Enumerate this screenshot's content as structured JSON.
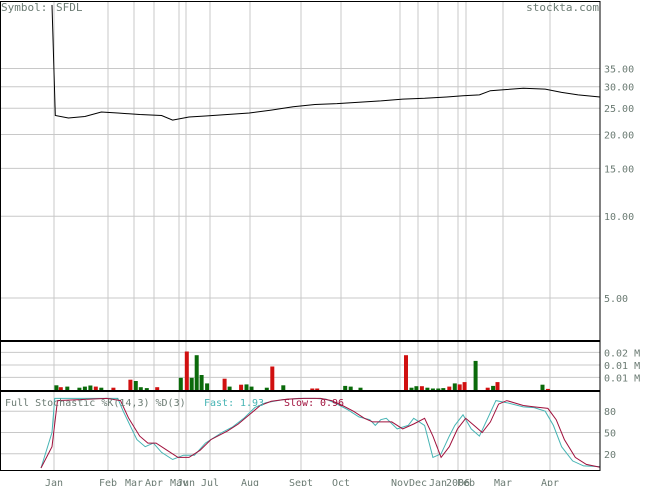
{
  "header": {
    "symbol_label": "Symbol:",
    "symbol": "SFDL",
    "site": "stockta.com"
  },
  "colors": {
    "text": "#6b7b73",
    "grid": "#c8c8c8",
    "up_volume": "#0a6a0a",
    "down_volume": "#d01010",
    "fast_line": "#46b4b4",
    "slow_line": "#a0103c",
    "price_line": "#000000"
  },
  "chart_data": [
    {
      "type": "line",
      "name": "price",
      "y_scale": "log",
      "ylim": [
        3.5,
        60
      ],
      "y_ticks": [
        {
          "label": "35.00",
          "value": 35
        },
        {
          "label": "30.00",
          "value": 30
        },
        {
          "label": "25.00",
          "value": 25
        },
        {
          "label": "20.00",
          "value": 20
        },
        {
          "label": "15.00",
          "value": 15
        },
        {
          "label": "10.00",
          "value": 10
        },
        {
          "label": "5.00",
          "value": 5
        }
      ],
      "x_ticks": [
        "Jan",
        "Feb",
        "Mar",
        "Apr",
        "May",
        "Jun",
        "Jul",
        "Aug",
        "Sept",
        "Oct",
        "Nov",
        "Dec",
        "Jan",
        "2006",
        "Feb",
        "Mar",
        "Apr"
      ],
      "x_range": [
        0,
        100
      ],
      "points": [
        [
          0,
          60
        ],
        [
          0.6,
          23.5
        ],
        [
          3,
          23
        ],
        [
          6,
          23.3
        ],
        [
          9,
          24.2
        ],
        [
          12,
          24
        ],
        [
          16,
          23.7
        ],
        [
          20,
          23.5
        ],
        [
          22,
          22.6
        ],
        [
          25,
          23.2
        ],
        [
          28,
          23.4
        ],
        [
          32,
          23.7
        ],
        [
          36,
          24
        ],
        [
          40,
          24.6
        ],
        [
          44,
          25.3
        ],
        [
          48,
          25.8
        ],
        [
          52,
          26
        ],
        [
          56,
          26.3
        ],
        [
          60,
          26.6
        ],
        [
          64,
          27
        ],
        [
          68,
          27.2
        ],
        [
          72,
          27.5
        ],
        [
          75,
          27.8
        ],
        [
          78,
          28
        ],
        [
          80,
          29
        ],
        [
          83,
          29.3
        ],
        [
          86,
          29.6
        ],
        [
          90,
          29.4
        ],
        [
          93,
          28.6
        ],
        [
          96,
          28
        ],
        [
          100,
          27.5
        ]
      ]
    },
    {
      "type": "bar",
      "name": "volume",
      "y_ticks": [
        {
          "label": "0.02 M",
          "value": 0.02
        },
        {
          "label": "0.01 M",
          "value": 0.0133
        },
        {
          "label": "0.01 M",
          "value": 0.0067
        }
      ],
      "ylim": [
        0,
        0.025
      ],
      "bars": [
        {
          "x": 0.8,
          "v": 0.0025,
          "up": true
        },
        {
          "x": 1.6,
          "v": 0.0015,
          "up": false
        },
        {
          "x": 2.8,
          "v": 0.0018,
          "up": true
        },
        {
          "x": 5,
          "v": 0.0012,
          "up": true
        },
        {
          "x": 6,
          "v": 0.0018,
          "up": true
        },
        {
          "x": 7,
          "v": 0.0024,
          "up": true
        },
        {
          "x": 8,
          "v": 0.0018,
          "up": false
        },
        {
          "x": 9,
          "v": 0.0012,
          "up": true
        },
        {
          "x": 11.2,
          "v": 0.0012,
          "up": false
        },
        {
          "x": 14.3,
          "v": 0.0055,
          "up": false
        },
        {
          "x": 15.3,
          "v": 0.0048,
          "up": true
        },
        {
          "x": 16.2,
          "v": 0.0015,
          "up": true
        },
        {
          "x": 17.3,
          "v": 0.001,
          "up": true
        },
        {
          "x": 19.2,
          "v": 0.0015,
          "up": false
        },
        {
          "x": 23.5,
          "v": 0.0065,
          "up": true
        },
        {
          "x": 24.6,
          "v": 0.0205,
          "up": false
        },
        {
          "x": 25.5,
          "v": 0.0065,
          "up": true
        },
        {
          "x": 26.4,
          "v": 0.0185,
          "up": true
        },
        {
          "x": 27.3,
          "v": 0.008,
          "up": true
        },
        {
          "x": 28.3,
          "v": 0.0035,
          "up": true
        },
        {
          "x": 31.5,
          "v": 0.006,
          "up": false
        },
        {
          "x": 32.4,
          "v": 0.0018,
          "up": true
        },
        {
          "x": 34.5,
          "v": 0.0028,
          "up": false
        },
        {
          "x": 35.5,
          "v": 0.003,
          "up": true
        },
        {
          "x": 36.4,
          "v": 0.0018,
          "up": true
        },
        {
          "x": 39.2,
          "v": 0.0012,
          "up": true
        },
        {
          "x": 40.2,
          "v": 0.0125,
          "up": false
        },
        {
          "x": 42.2,
          "v": 0.0025,
          "up": true
        },
        {
          "x": 47.5,
          "v": 0.0008,
          "up": false
        },
        {
          "x": 48.4,
          "v": 0.0008,
          "up": false
        },
        {
          "x": 53.5,
          "v": 0.0022,
          "up": true
        },
        {
          "x": 54.5,
          "v": 0.0018,
          "up": true
        },
        {
          "x": 56.3,
          "v": 0.0012,
          "up": true
        },
        {
          "x": 64.6,
          "v": 0.0185,
          "up": false
        },
        {
          "x": 65.6,
          "v": 0.0012,
          "up": true
        },
        {
          "x": 66.5,
          "v": 0.002,
          "up": true
        },
        {
          "x": 67.5,
          "v": 0.002,
          "up": false
        },
        {
          "x": 68.5,
          "v": 0.0012,
          "up": true
        },
        {
          "x": 69.5,
          "v": 0.0008,
          "up": true
        },
        {
          "x": 70.5,
          "v": 0.0008,
          "up": true
        },
        {
          "x": 71.4,
          "v": 0.001,
          "up": true
        },
        {
          "x": 72.5,
          "v": 0.0018,
          "up": false
        },
        {
          "x": 73.5,
          "v": 0.0035,
          "up": true
        },
        {
          "x": 74.4,
          "v": 0.003,
          "up": false
        },
        {
          "x": 75.3,
          "v": 0.0042,
          "up": false
        },
        {
          "x": 77.3,
          "v": 0.0155,
          "up": true
        },
        {
          "x": 79.5,
          "v": 0.0012,
          "up": false
        },
        {
          "x": 80.5,
          "v": 0.0022,
          "up": true
        },
        {
          "x": 81.3,
          "v": 0.0042,
          "up": false
        },
        {
          "x": 89.5,
          "v": 0.0028,
          "up": true
        },
        {
          "x": 90.5,
          "v": 0.0006,
          "up": false
        }
      ]
    },
    {
      "type": "line",
      "name": "stochastic",
      "title": "Full Stochastic %K(14,3) %D(3)",
      "fast_label": "Fast:",
      "fast_value": "1.93",
      "slow_label": "Slow:",
      "slow_value": "0.96",
      "ylim": [
        0,
        100
      ],
      "y_ticks": [
        {
          "label": "80",
          "value": 80
        },
        {
          "label": "50",
          "value": 50
        },
        {
          "label": "20",
          "value": 20
        }
      ],
      "series": [
        {
          "name": "Fast",
          "points": [
            [
              -2,
              0
            ],
            [
              0,
              50
            ],
            [
              0.5,
              98
            ],
            [
              10,
              98
            ],
            [
              12,
              98
            ],
            [
              13,
              80
            ],
            [
              15.5,
              40
            ],
            [
              17,
              30
            ],
            [
              18.5,
              35
            ],
            [
              20,
              22
            ],
            [
              22,
              12
            ],
            [
              24,
              18
            ],
            [
              26,
              18
            ],
            [
              28,
              35
            ],
            [
              31,
              50
            ],
            [
              33,
              58
            ],
            [
              35,
              70
            ],
            [
              37,
              85
            ],
            [
              39,
              92
            ],
            [
              42,
              96
            ],
            [
              45,
              98
            ],
            [
              48,
              98
            ],
            [
              50,
              97
            ],
            [
              52,
              90
            ],
            [
              54,
              82
            ],
            [
              56,
              72
            ],
            [
              58,
              68
            ],
            [
              59,
              60
            ],
            [
              60,
              68
            ],
            [
              61,
              70
            ],
            [
              63,
              55
            ],
            [
              65,
              60
            ],
            [
              66,
              70
            ],
            [
              68,
              60
            ],
            [
              69.5,
              15
            ],
            [
              71,
              20
            ],
            [
              72.5,
              45
            ],
            [
              73.5,
              60
            ],
            [
              75,
              75
            ],
            [
              76.5,
              55
            ],
            [
              78,
              45
            ],
            [
              79.5,
              70
            ],
            [
              81,
              95
            ],
            [
              83,
              92
            ],
            [
              86,
              86
            ],
            [
              88,
              85
            ],
            [
              90,
              80
            ],
            [
              91.5,
              60
            ],
            [
              93,
              30
            ],
            [
              95,
              10
            ],
            [
              97,
              3
            ],
            [
              100,
              2
            ]
          ]
        },
        {
          "name": "Slow",
          "points": [
            [
              -2,
              0
            ],
            [
              0,
              30
            ],
            [
              1,
              95
            ],
            [
              10,
              98
            ],
            [
              12.5,
              95
            ],
            [
              14,
              70
            ],
            [
              16,
              45
            ],
            [
              17.5,
              35
            ],
            [
              19,
              35
            ],
            [
              21,
              25
            ],
            [
              23,
              15
            ],
            [
              25,
              15
            ],
            [
              27,
              25
            ],
            [
              29,
              40
            ],
            [
              32,
              52
            ],
            [
              34,
              62
            ],
            [
              36,
              75
            ],
            [
              38,
              88
            ],
            [
              40,
              94
            ],
            [
              43,
              97
            ],
            [
              46,
              98
            ],
            [
              49,
              98
            ],
            [
              51,
              95
            ],
            [
              53,
              88
            ],
            [
              55,
              80
            ],
            [
              57,
              70
            ],
            [
              58.5,
              65
            ],
            [
              60,
              65
            ],
            [
              62,
              65
            ],
            [
              64,
              55
            ],
            [
              66,
              62
            ],
            [
              68,
              70
            ],
            [
              69.5,
              45
            ],
            [
              71,
              15
            ],
            [
              72.5,
              30
            ],
            [
              74,
              55
            ],
            [
              75.5,
              70
            ],
            [
              77,
              60
            ],
            [
              78.5,
              50
            ],
            [
              80,
              65
            ],
            [
              81.5,
              90
            ],
            [
              83,
              95
            ],
            [
              86,
              88
            ],
            [
              88,
              86
            ],
            [
              90.5,
              84
            ],
            [
              92,
              68
            ],
            [
              93.5,
              40
            ],
            [
              95.5,
              15
            ],
            [
              97.5,
              5
            ],
            [
              100,
              1
            ]
          ]
        }
      ]
    }
  ]
}
